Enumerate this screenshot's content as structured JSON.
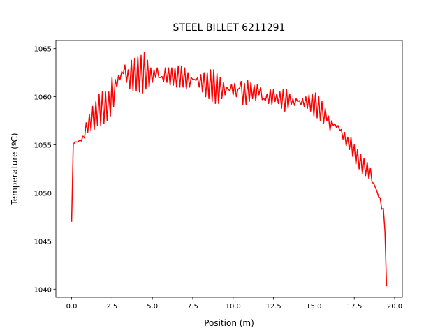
{
  "chart_data": {
    "type": "line",
    "title": "STEEL BILLET 6211291",
    "x_label": "Position (m)",
    "y_label": "Temperature (ºC)",
    "color": "#ff0000",
    "grid": false,
    "x": [
      0,
      0.1,
      0.2,
      0.3,
      0.4,
      0.5,
      0.6,
      0.7,
      0.8,
      0.9,
      1.0,
      1.1,
      1.2,
      1.3,
      1.4,
      1.5,
      1.6,
      1.7,
      1.8,
      1.9,
      2.0,
      2.1,
      2.2,
      2.3,
      2.4,
      2.5,
      2.6,
      2.7,
      2.8,
      2.9,
      3.0,
      3.1,
      3.2,
      3.3,
      3.4,
      3.5,
      3.6,
      3.7,
      3.8,
      3.9,
      4.0,
      4.1,
      4.2,
      4.3,
      4.4,
      4.5,
      4.6,
      4.7,
      4.8,
      4.9,
      5.0,
      5.1,
      5.2,
      5.3,
      5.4,
      5.5,
      5.6,
      5.7,
      5.8,
      5.9,
      6.0,
      6.1,
      6.2,
      6.3,
      6.4,
      6.5,
      6.6,
      6.7,
      6.8,
      6.9,
      7.0,
      7.1,
      7.2,
      7.3,
      7.4,
      7.5,
      7.6,
      7.7,
      7.8,
      7.9,
      8.0,
      8.1,
      8.2,
      8.3,
      8.4,
      8.5,
      8.6,
      8.7,
      8.8,
      8.9,
      9.0,
      9.1,
      9.2,
      9.3,
      9.4,
      9.5,
      9.6,
      9.7,
      9.8,
      9.9,
      10.0,
      10.1,
      10.2,
      10.3,
      10.4,
      10.5,
      10.6,
      10.7,
      10.8,
      10.9,
      11.0,
      11.1,
      11.2,
      11.3,
      11.4,
      11.5,
      11.6,
      11.7,
      11.8,
      11.9,
      12.0,
      12.1,
      12.2,
      12.3,
      12.4,
      12.5,
      12.6,
      12.7,
      12.8,
      12.9,
      13.0,
      13.1,
      13.2,
      13.3,
      13.4,
      13.5,
      13.6,
      13.7,
      13.8,
      13.9,
      14.0,
      14.1,
      14.2,
      14.3,
      14.4,
      14.5,
      14.6,
      14.7,
      14.8,
      14.9,
      15.0,
      15.1,
      15.2,
      15.3,
      15.4,
      15.5,
      15.6,
      15.7,
      15.8,
      15.9,
      16.0,
      16.1,
      16.2,
      16.3,
      16.4,
      16.5,
      16.6,
      16.7,
      16.8,
      16.9,
      17.0,
      17.1,
      17.2,
      17.3,
      17.4,
      17.5,
      17.6,
      17.7,
      17.8,
      17.9,
      18.0,
      18.1,
      18.2,
      18.3,
      18.4,
      18.5,
      18.6,
      18.7,
      18.8,
      18.9,
      19.0,
      19.1,
      19.2,
      19.3,
      19.4,
      19.5
    ],
    "values": [
      1047,
      1055,
      1055.3,
      1055.3,
      1055.3,
      1055.5,
      1055.4,
      1055.9,
      1055.7,
      1057.3,
      1056.3,
      1058.2,
      1056.5,
      1059,
      1056.6,
      1059.5,
      1057,
      1060.3,
      1057,
      1060.5,
      1057.2,
      1060.5,
      1057.5,
      1060.5,
      1058,
      1062,
      1059,
      1061.8,
      1061,
      1062.2,
      1061.8,
      1062.6,
      1062.4,
      1063.3,
      1061.5,
      1062.8,
      1060.8,
      1063.8,
      1060.6,
      1064,
      1060.6,
      1064.2,
      1060.5,
      1064.3,
      1060.4,
      1064.6,
      1060.8,
      1063.8,
      1061,
      1063,
      1061.5,
      1062.8,
      1062,
      1063,
      1062,
      1062,
      1062.1,
      1061.6,
      1063,
      1061.5,
      1063,
      1061.2,
      1063,
      1061.2,
      1063,
      1061,
      1063.2,
      1061,
      1063.2,
      1061,
      1063,
      1060.8,
      1062.5,
      1061,
      1062,
      1061.8,
      1061.8,
      1061.7,
      1062,
      1061,
      1062.3,
      1060.5,
      1062.5,
      1060,
      1062.5,
      1059.8,
      1062.8,
      1059.5,
      1062.8,
      1059.3,
      1062.4,
      1059.3,
      1062,
      1059.8,
      1061.5,
      1060.2,
      1061,
      1060.8,
      1060.6,
      1061.3,
      1060.2,
      1061.4,
      1060,
      1060.8,
      1060.9,
      1061.6,
      1059.2,
      1061.4,
      1059.2,
      1061.7,
      1059.5,
      1061.5,
      1059.8,
      1061.2,
      1059.6,
      1061.3,
      1060.2,
      1061,
      1059.7,
      1059.8,
      1059.6,
      1060.3,
      1059.3,
      1060.8,
      1059.2,
      1060.8,
      1059.5,
      1060.3,
      1059.3,
      1060.5,
      1058.8,
      1060.8,
      1058.5,
      1060.8,
      1058.8,
      1060.3,
      1059.2,
      1059.8,
      1059.1,
      1059.8,
      1059.5,
      1059.6,
      1059.2,
      1059.8,
      1059,
      1060,
      1058.8,
      1060.2,
      1058.5,
      1060.3,
      1058,
      1060.4,
      1057.8,
      1060,
      1057.5,
      1059.5,
      1057.2,
      1058.8,
      1057.5,
      1058,
      1056.5,
      1057.5,
      1057,
      1057.2,
      1056.8,
      1057,
      1056.5,
      1056.6,
      1055.6,
      1056.3,
      1054.9,
      1055.8,
      1054.5,
      1055.8,
      1053.8,
      1055,
      1053,
      1054.5,
      1052.5,
      1054,
      1052,
      1053.6,
      1051.8,
      1053.2,
      1051.5,
      1052.6,
      1051.1,
      1051,
      1050.6,
      1050.2,
      1049.6,
      1049.5,
      1048.3,
      1048.4,
      1046,
      1040.3
    ],
    "xlim": [
      -0.975,
      20.475
    ],
    "xticks": [
      {
        "value": 0,
        "label": "0.0"
      },
      2.5,
      {
        "value": 5,
        "label": "5.0"
      },
      7.5,
      {
        "value": 10,
        "label": "10.0"
      },
      12.5,
      {
        "value": 15,
        "label": "15.0"
      },
      17.5,
      {
        "value": 20,
        "label": "20.0"
      }
    ],
    "ylim": [
      1039.15,
      1065.85
    ],
    "yticks": [
      1040,
      1045,
      1050,
      1055,
      1060,
      1065
    ]
  }
}
